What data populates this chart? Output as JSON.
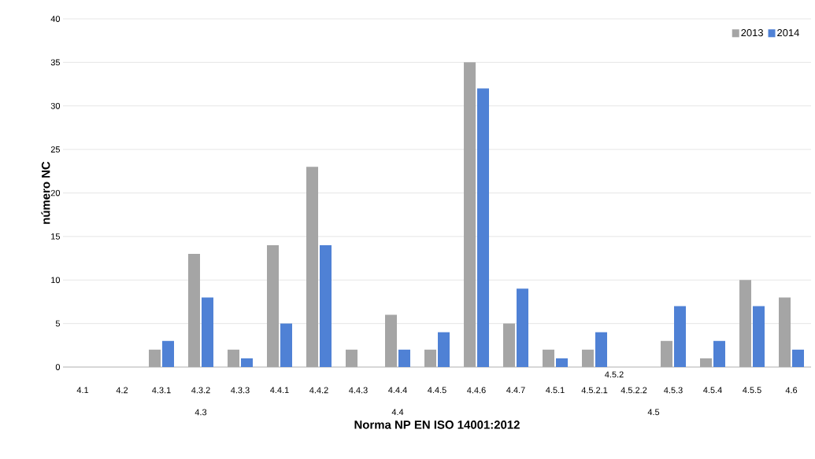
{
  "chart_data": {
    "type": "bar",
    "xlabel": "Norma NP EN ISO 14001:2012",
    "ylabel": "número NC",
    "categories": [
      "4.1",
      "4.2",
      "4.3.1",
      "4.3.2",
      "4.3.3",
      "4.4.1",
      "4.4.2",
      "4.4.3",
      "4.4.4",
      "4.4.5",
      "4.4.6",
      "4.4.7",
      "4.5.1",
      "4.5.2.1",
      "4.5.2.2",
      "4.5.3",
      "4.5.4",
      "4.5.5",
      "4.6"
    ],
    "series": [
      {
        "name": "2013",
        "color": "#a5a5a5",
        "values": [
          0,
          0,
          2,
          13,
          2,
          14,
          23,
          2,
          6,
          2,
          35,
          5,
          2,
          2,
          0,
          3,
          1,
          10,
          8
        ]
      },
      {
        "name": "2014",
        "color": "#4f81d5",
        "values": [
          0,
          0,
          3,
          8,
          1,
          5,
          14,
          0,
          2,
          4,
          32,
          9,
          1,
          4,
          0,
          7,
          3,
          7,
          2
        ]
      }
    ],
    "ylim": [
      0,
      40
    ],
    "yticks": [
      0,
      5,
      10,
      15,
      20,
      25,
      30,
      35,
      40
    ],
    "grid": "y",
    "legend": "top right",
    "annotations": [
      "4.3",
      "4.4",
      "4.5.2",
      "4.5"
    ]
  }
}
